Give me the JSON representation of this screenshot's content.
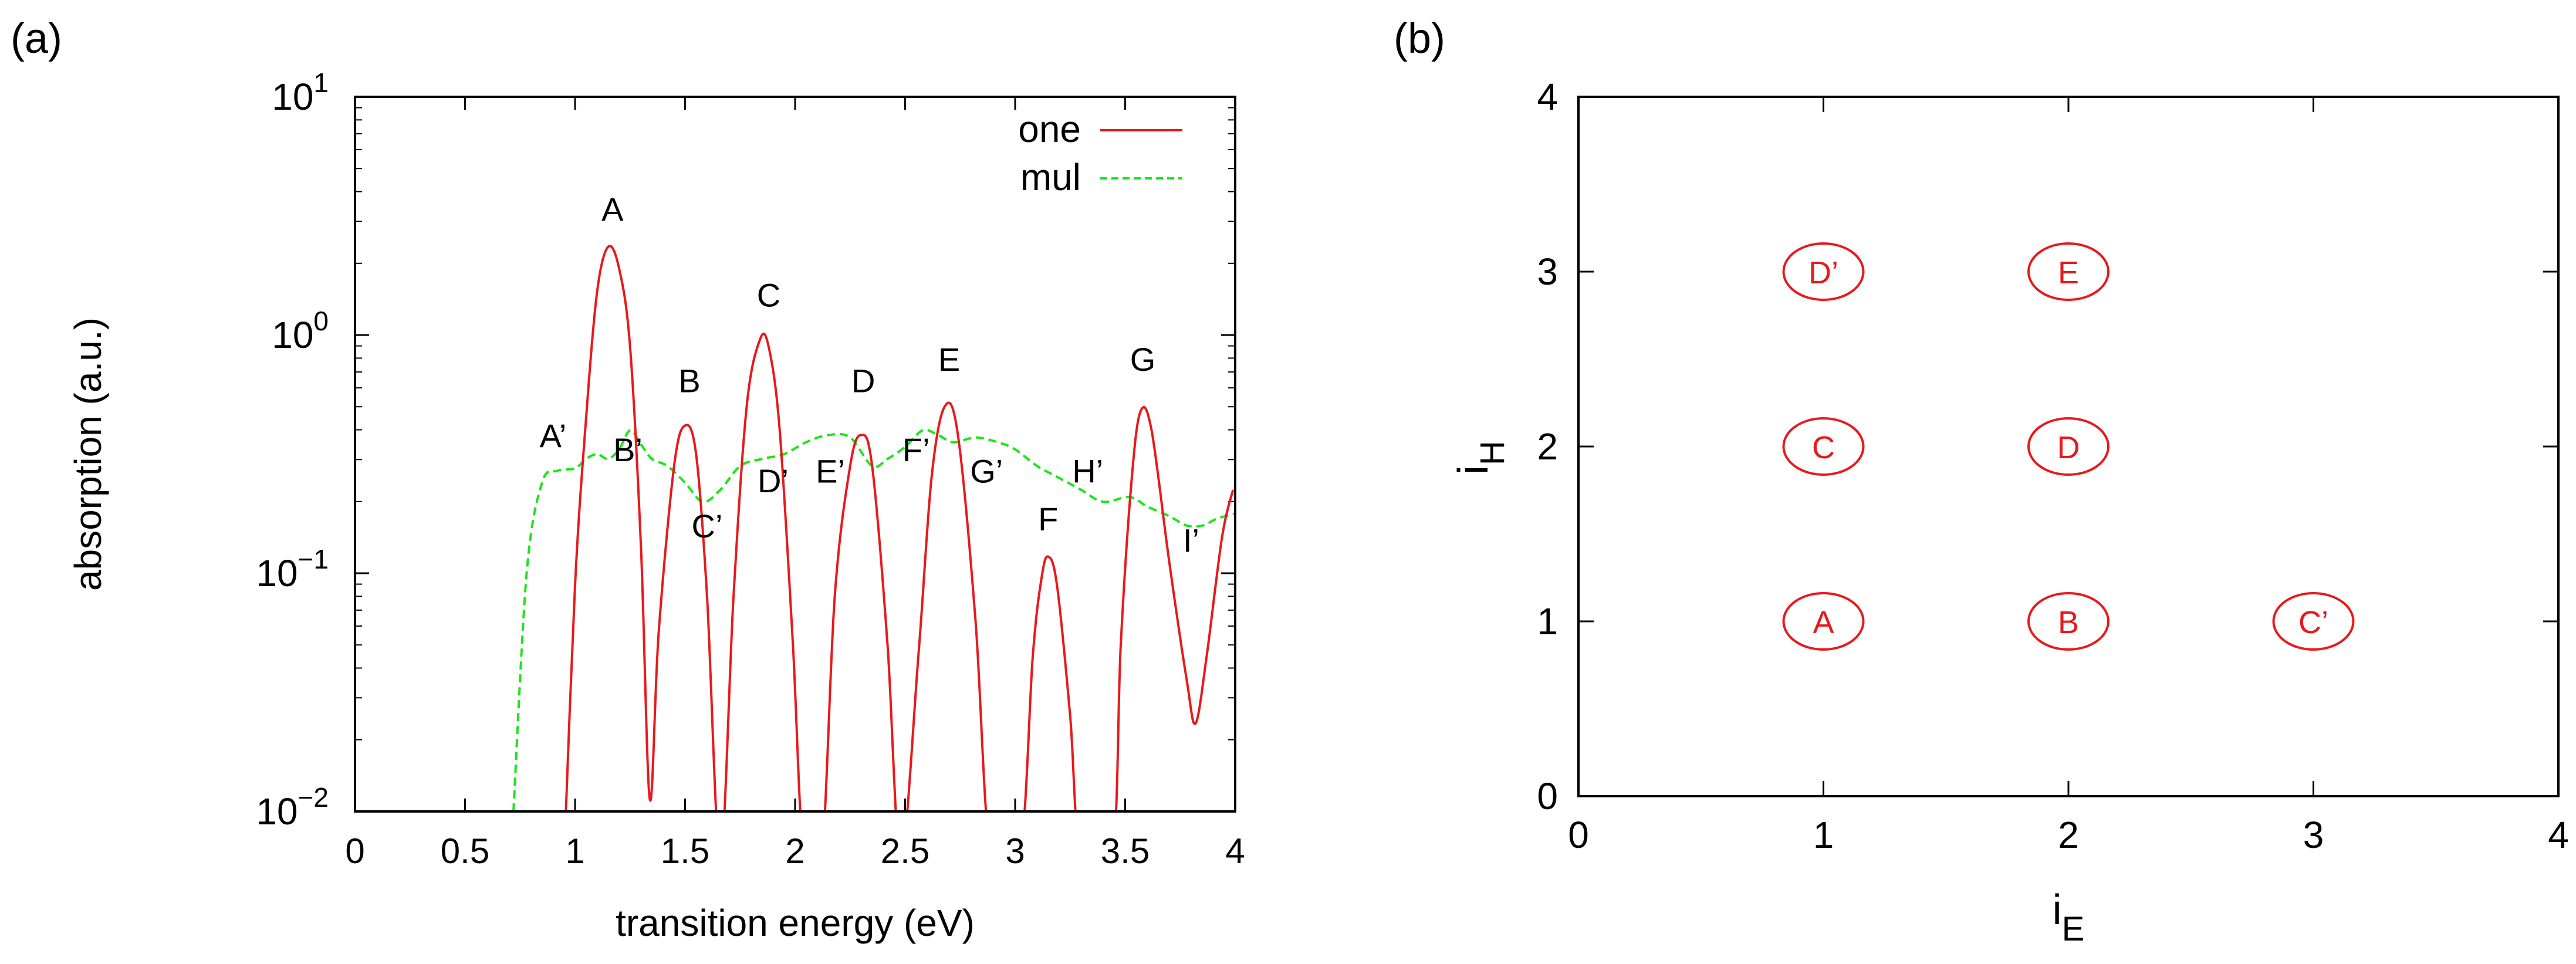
{
  "panel_labels": {
    "a": "(a)",
    "b": "(b)"
  },
  "colors": {
    "one": "#e8191b",
    "mul": "#19e619",
    "peak_label": "#000000",
    "prime_label": "#3a1a8f",
    "circle": "#e8191b"
  },
  "chart_data": [
    {
      "id": "a",
      "type": "line",
      "xlabel": "transition energy (eV)",
      "ylabel": "absorption (a.u.)",
      "xlim": [
        0,
        4
      ],
      "ylim_log10": [
        -2,
        1
      ],
      "yscale": "log",
      "xticks": [
        0,
        0.5,
        1,
        1.5,
        2,
        2.5,
        3,
        3.5,
        4
      ],
      "xtick_labels": [
        "0",
        "0.5",
        "1",
        "1.5",
        "2",
        "2.5",
        "3",
        "3.5",
        "4"
      ],
      "yticks": [
        {
          "log10": 1,
          "base": "10",
          "exp": "1"
        },
        {
          "log10": 0,
          "base": "10",
          "exp": "0"
        },
        {
          "log10": -1,
          "base": "10",
          "exp": "−1"
        },
        {
          "log10": -2,
          "base": "10",
          "exp": "−2"
        }
      ],
      "legend": {
        "position": "top-right",
        "entries": [
          {
            "name": "one",
            "style": "solid"
          },
          {
            "name": "mul",
            "style": "dashed"
          }
        ]
      },
      "series": [
        {
          "name": "one",
          "points": [
            [
              0.95,
              -2.2
            ],
            [
              1.0,
              -1.05
            ],
            [
              1.05,
              -0.35
            ],
            [
              1.1,
              0.18
            ],
            [
              1.15,
              0.37
            ],
            [
              1.2,
              0.28
            ],
            [
              1.25,
              -0.05
            ],
            [
              1.3,
              -0.9
            ],
            [
              1.34,
              -1.95
            ],
            [
              1.38,
              -1.25
            ],
            [
              1.45,
              -0.55
            ],
            [
              1.5,
              -0.38
            ],
            [
              1.55,
              -0.5
            ],
            [
              1.6,
              -1.1
            ],
            [
              1.66,
              -2.2
            ],
            [
              1.72,
              -1.1
            ],
            [
              1.78,
              -0.3
            ],
            [
              1.84,
              -0.02
            ],
            [
              1.88,
              -0.05
            ],
            [
              1.93,
              -0.4
            ],
            [
              1.99,
              -1.3
            ],
            [
              2.04,
              -2.2
            ],
            [
              2.12,
              -2.2
            ],
            [
              2.18,
              -1.1
            ],
            [
              2.25,
              -0.55
            ],
            [
              2.3,
              -0.42
            ],
            [
              2.35,
              -0.55
            ],
            [
              2.42,
              -1.3
            ],
            [
              2.48,
              -2.2
            ],
            [
              2.56,
              -1.35
            ],
            [
              2.62,
              -0.6
            ],
            [
              2.68,
              -0.3
            ],
            [
              2.74,
              -0.42
            ],
            [
              2.82,
              -1.2
            ],
            [
              2.89,
              -2.2
            ],
            [
              3.02,
              -2.2
            ],
            [
              3.08,
              -1.35
            ],
            [
              3.12,
              -1.02
            ],
            [
              3.15,
              -0.93
            ],
            [
              3.19,
              -1.05
            ],
            [
              3.25,
              -1.6
            ],
            [
              3.3,
              -2.2
            ],
            [
              3.44,
              -2.2
            ],
            [
              3.48,
              -1.3
            ],
            [
              3.53,
              -0.6
            ],
            [
              3.57,
              -0.32
            ],
            [
              3.62,
              -0.4
            ],
            [
              3.7,
              -0.95
            ],
            [
              3.78,
              -1.45
            ],
            [
              3.82,
              -1.63
            ],
            [
              3.87,
              -1.35
            ],
            [
              3.94,
              -0.85
            ],
            [
              3.99,
              -0.65
            ]
          ]
        },
        {
          "name": "mul",
          "points": [
            [
              0.72,
              -2.0
            ],
            [
              0.78,
              -1.0
            ],
            [
              0.85,
              -0.62
            ],
            [
              0.92,
              -0.57
            ],
            [
              1.0,
              -0.56
            ],
            [
              1.05,
              -0.52
            ],
            [
              1.1,
              -0.5
            ],
            [
              1.15,
              -0.52
            ],
            [
              1.2,
              -0.48
            ],
            [
              1.25,
              -0.4
            ],
            [
              1.3,
              -0.46
            ],
            [
              1.35,
              -0.52
            ],
            [
              1.42,
              -0.55
            ],
            [
              1.5,
              -0.62
            ],
            [
              1.58,
              -0.7
            ],
            [
              1.66,
              -0.65
            ],
            [
              1.75,
              -0.55
            ],
            [
              1.85,
              -0.52
            ],
            [
              1.95,
              -0.5
            ],
            [
              2.05,
              -0.45
            ],
            [
              2.15,
              -0.42
            ],
            [
              2.25,
              -0.43
            ],
            [
              2.35,
              -0.55
            ],
            [
              2.42,
              -0.52
            ],
            [
              2.5,
              -0.47
            ],
            [
              2.58,
              -0.4
            ],
            [
              2.65,
              -0.42
            ],
            [
              2.72,
              -0.45
            ],
            [
              2.82,
              -0.43
            ],
            [
              2.92,
              -0.45
            ],
            [
              3.0,
              -0.48
            ],
            [
              3.1,
              -0.55
            ],
            [
              3.2,
              -0.6
            ],
            [
              3.3,
              -0.65
            ],
            [
              3.4,
              -0.7
            ],
            [
              3.52,
              -0.68
            ],
            [
              3.6,
              -0.72
            ],
            [
              3.7,
              -0.76
            ],
            [
              3.78,
              -0.8
            ],
            [
              3.85,
              -0.8
            ],
            [
              3.92,
              -0.77
            ],
            [
              4.0,
              -0.75
            ]
          ]
        }
      ],
      "annotations": [
        {
          "text": "A",
          "x": 1.17,
          "log10": 0.48,
          "kind": "peak"
        },
        {
          "text": "B",
          "x": 1.52,
          "log10": -0.24,
          "kind": "peak"
        },
        {
          "text": "C",
          "x": 1.88,
          "log10": 0.12,
          "kind": "peak"
        },
        {
          "text": "D",
          "x": 2.31,
          "log10": -0.24,
          "kind": "peak"
        },
        {
          "text": "E",
          "x": 2.7,
          "log10": -0.15,
          "kind": "peak"
        },
        {
          "text": "F",
          "x": 3.15,
          "log10": -0.82,
          "kind": "peak"
        },
        {
          "text": "G",
          "x": 3.58,
          "log10": -0.15,
          "kind": "peak"
        },
        {
          "text": "A’",
          "x": 0.9,
          "log10": -0.47,
          "kind": "prime"
        },
        {
          "text": "B’",
          "x": 1.24,
          "log10": -0.53,
          "kind": "prime"
        },
        {
          "text": "C’",
          "x": 1.6,
          "log10": -0.85,
          "kind": "prime"
        },
        {
          "text": "D’",
          "x": 1.9,
          "log10": -0.66,
          "kind": "prime"
        },
        {
          "text": "E’",
          "x": 2.16,
          "log10": -0.62,
          "kind": "prime"
        },
        {
          "text": "F’",
          "x": 2.55,
          "log10": -0.53,
          "kind": "prime"
        },
        {
          "text": "G’",
          "x": 2.87,
          "log10": -0.62,
          "kind": "prime"
        },
        {
          "text": "H’",
          "x": 3.33,
          "log10": -0.62,
          "kind": "prime"
        },
        {
          "text": "I’",
          "x": 3.8,
          "log10": -0.91,
          "kind": "prime"
        }
      ]
    },
    {
      "id": "b",
      "type": "scatter",
      "xlabel": {
        "base": "i",
        "sub": "E"
      },
      "ylabel": {
        "base": "i",
        "sub": "H"
      },
      "xlim": [
        0,
        4
      ],
      "ylim": [
        0,
        4
      ],
      "xticks": [
        0,
        1,
        2,
        3,
        4
      ],
      "yticks": [
        0,
        1,
        2,
        3,
        4
      ],
      "points": [
        {
          "label": "D’",
          "x": 1,
          "y": 3
        },
        {
          "label": "E",
          "x": 2,
          "y": 3
        },
        {
          "label": "C",
          "x": 1,
          "y": 2
        },
        {
          "label": "D",
          "x": 2,
          "y": 2
        },
        {
          "label": "A",
          "x": 1,
          "y": 1
        },
        {
          "label": "B",
          "x": 2,
          "y": 1
        },
        {
          "label": "C’",
          "x": 3,
          "y": 1
        }
      ]
    }
  ]
}
